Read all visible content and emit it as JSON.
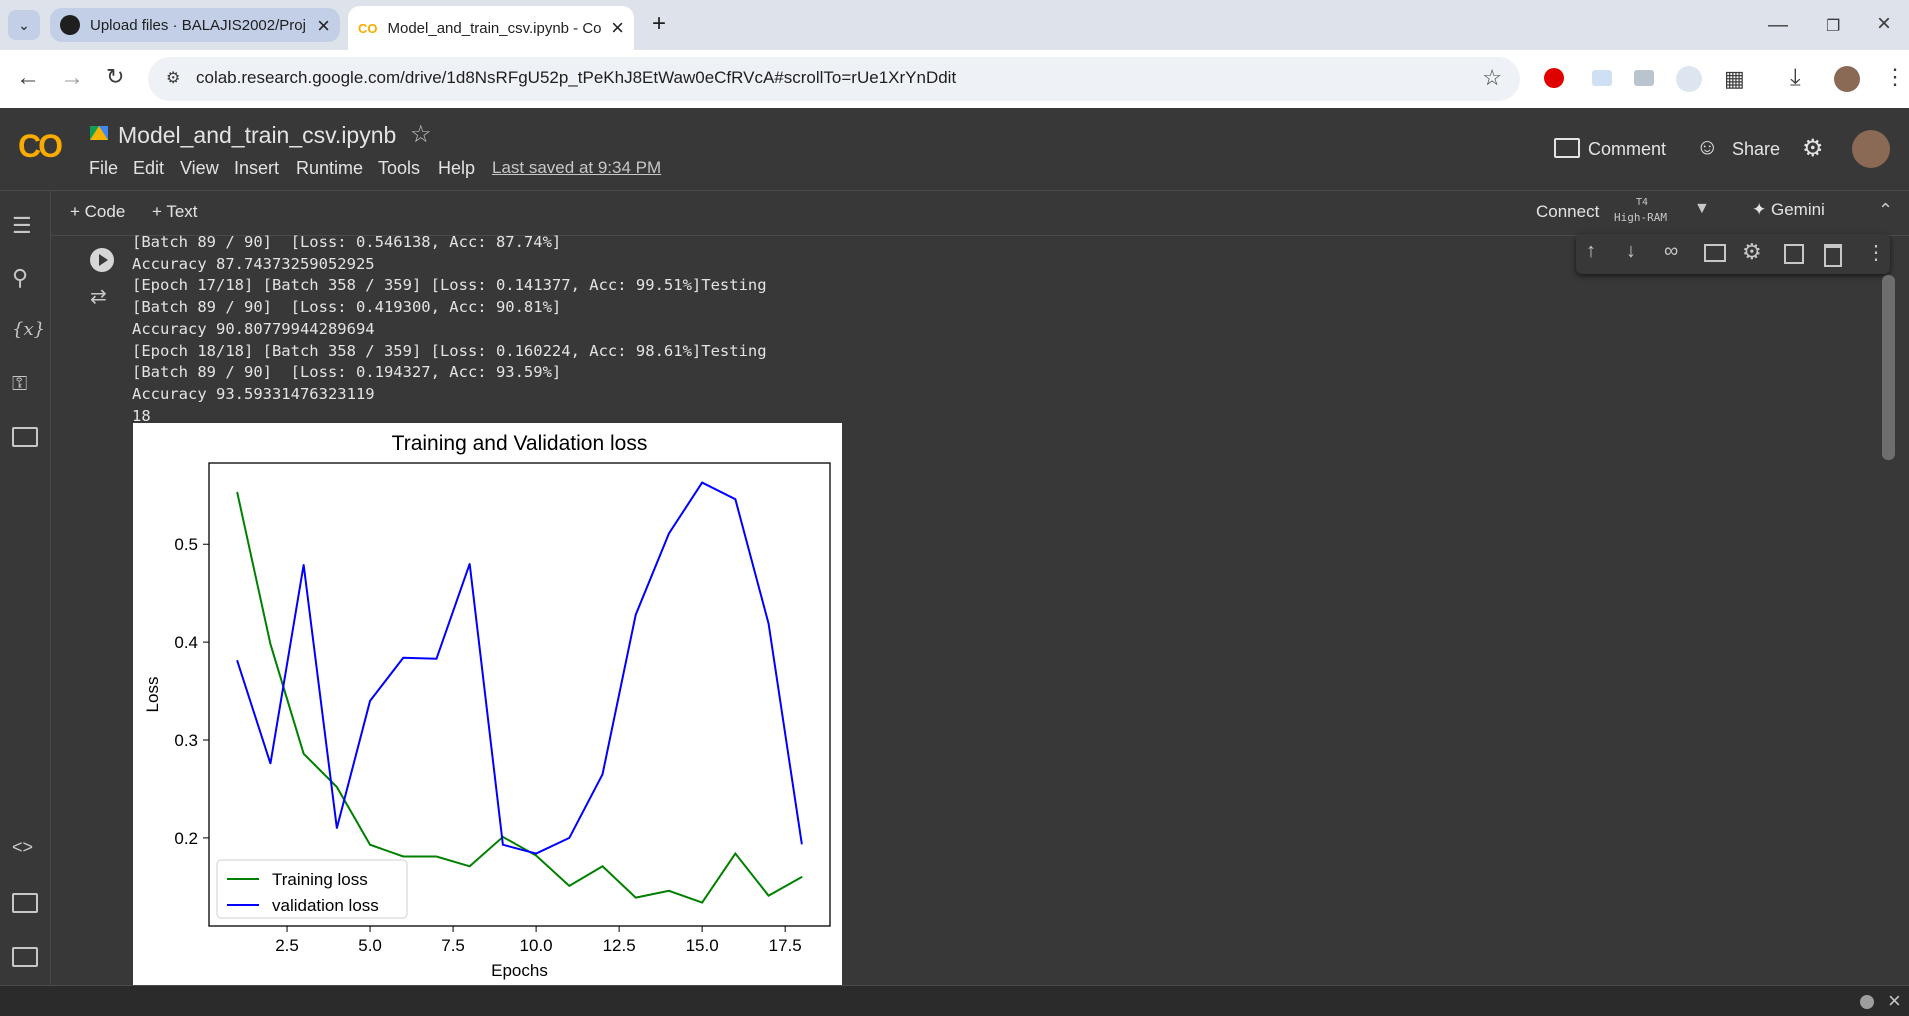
{
  "browser": {
    "tabs": [
      {
        "title": "Upload files · BALAJIS2002/Proj"
      },
      {
        "title": "Model_and_train_csv.ipynb - Co"
      }
    ],
    "url": "colab.research.google.com/drive/1d8NsRFgU52p_tPeKhJ8EtWaw0eCfRVcA#scrollTo=rUe1XrYnDdit"
  },
  "colab": {
    "logo": "CO",
    "notebook_title": "Model_and_train_csv.ipynb",
    "menu": [
      "File",
      "Edit",
      "View",
      "Insert",
      "Runtime",
      "Tools",
      "Help"
    ],
    "last_saved": "Last saved at 9:34 PM",
    "comment_label": "Comment",
    "share_label": "Share",
    "add_code": "+ Code",
    "add_text": "+ Text",
    "connect_label": "Connect",
    "runtime_gpu": "T4",
    "runtime_ram": "High-RAM",
    "gemini_label": "Gemini"
  },
  "output_lines": [
    "[Batch 89 / 90]  [Loss: 0.546138, Acc: 87.74%]",
    "Accuracy 87.74373259052925",
    "[Epoch 17/18] [Batch 358 / 359] [Loss: 0.141377, Acc: 99.51%]Testing",
    "[Batch 89 / 90]  [Loss: 0.419300, Acc: 90.81%]",
    "Accuracy 90.80779944289694",
    "[Epoch 18/18] [Batch 358 / 359] [Loss: 0.160224, Acc: 98.61%]Testing",
    "[Batch 89 / 90]  [Loss: 0.194327, Acc: 93.59%]",
    "Accuracy 93.59331476323119",
    "18"
  ],
  "chart_data": {
    "type": "line",
    "title": "Training and Validation loss",
    "xlabel": "Epochs",
    "ylabel": "Loss",
    "xlim": [
      0.15,
      18.85
    ],
    "ylim": [
      0.11,
      0.583
    ],
    "xticks": [
      "2.5",
      "5.0",
      "7.5",
      "10.0",
      "12.5",
      "15.0",
      "17.5"
    ],
    "xtick_values": [
      2.5,
      5.0,
      7.5,
      10.0,
      12.5,
      15.0,
      17.5
    ],
    "yticks": [
      "0.2",
      "0.3",
      "0.4",
      "0.5"
    ],
    "ytick_values": [
      0.2,
      0.3,
      0.4,
      0.5
    ],
    "legend_position": "lower-left",
    "x": [
      1,
      2,
      3,
      4,
      5,
      6,
      7,
      8,
      9,
      10,
      11,
      12,
      13,
      14,
      15,
      16,
      17,
      18
    ],
    "series": [
      {
        "name": "Training loss",
        "color": "#008000",
        "values": [
          0.553,
          0.398,
          0.286,
          0.252,
          0.193,
          0.181,
          0.181,
          0.171,
          0.201,
          0.182,
          0.151,
          0.171,
          0.139,
          0.146,
          0.134,
          0.184,
          0.141,
          0.16
        ]
      },
      {
        "name": "validation loss",
        "color": "#0000ff",
        "values": [
          0.381,
          0.276,
          0.479,
          0.21,
          0.34,
          0.384,
          0.383,
          0.48,
          0.193,
          0.184,
          0.2,
          0.265,
          0.428,
          0.511,
          0.563,
          0.546,
          0.419,
          0.194
        ]
      }
    ]
  }
}
